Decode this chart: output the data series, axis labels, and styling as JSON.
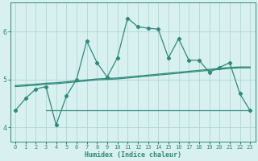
{
  "xlabel": "Humidex (Indice chaleur)",
  "bg_color": "#d8f0f0",
  "line_color": "#2e8b7a",
  "grid_color": "#acd8d8",
  "x_min": -0.5,
  "x_max": 23.5,
  "y_min": 3.7,
  "y_max": 6.6,
  "yticks": [
    4,
    5,
    6
  ],
  "xticks": [
    0,
    1,
    2,
    3,
    4,
    5,
    6,
    7,
    8,
    9,
    10,
    11,
    12,
    13,
    14,
    15,
    16,
    17,
    18,
    19,
    20,
    21,
    22,
    23
  ],
  "line1_x": [
    0,
    1,
    2,
    3,
    4,
    5,
    6,
    7,
    8,
    9,
    10,
    11,
    12,
    13,
    14,
    15,
    16,
    17,
    18,
    19,
    20,
    21,
    22,
    23
  ],
  "line1_y": [
    4.35,
    4.6,
    4.8,
    4.85,
    4.05,
    4.65,
    5.0,
    5.8,
    5.35,
    5.05,
    5.45,
    6.28,
    6.1,
    6.07,
    6.05,
    5.45,
    5.85,
    5.4,
    5.4,
    5.15,
    5.25,
    5.35,
    4.7,
    4.35
  ],
  "line2_x": [
    0,
    2,
    3,
    4,
    5,
    6,
    7,
    8,
    9,
    10,
    11,
    12,
    13,
    14,
    15,
    16,
    17,
    18,
    19,
    20,
    21,
    22,
    23
  ],
  "line2_y": [
    4.87,
    4.9,
    4.92,
    4.93,
    4.95,
    4.97,
    4.99,
    5.01,
    5.02,
    5.03,
    5.05,
    5.07,
    5.09,
    5.11,
    5.13,
    5.15,
    5.17,
    5.19,
    5.21,
    5.23,
    5.25,
    5.26,
    5.26
  ],
  "line3_x": [
    0,
    2,
    3,
    4,
    5,
    6,
    7,
    8,
    9,
    10,
    11,
    12,
    13,
    14,
    15,
    16,
    17,
    18,
    19,
    20,
    21,
    22,
    23
  ],
  "line3_y": [
    4.85,
    4.88,
    4.9,
    4.91,
    4.93,
    4.95,
    4.97,
    4.99,
    5.0,
    5.01,
    5.03,
    5.05,
    5.07,
    5.09,
    5.11,
    5.13,
    5.15,
    5.17,
    5.19,
    5.21,
    5.23,
    5.24,
    5.24
  ],
  "line4_x": [
    3,
    23
  ],
  "line4_y": [
    4.35,
    4.35
  ]
}
